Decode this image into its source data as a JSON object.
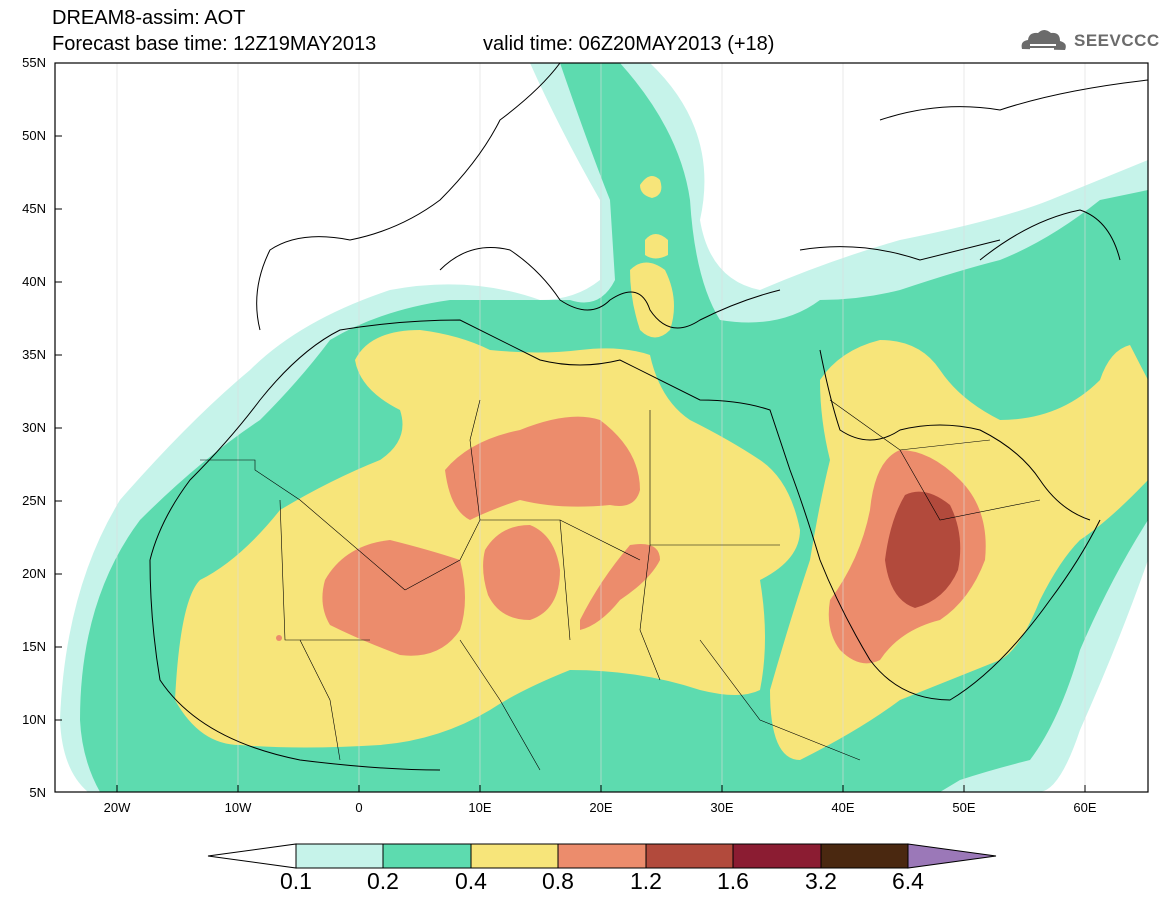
{
  "header": {
    "title": "DREAM8-assim: AOT",
    "base_time": "Forecast base time: 12Z19MAY2013",
    "valid_time": "valid time: 06Z20MAY2013 (+18)",
    "logo_text": "SEEVCCC"
  },
  "map": {
    "lat_labels": [
      "55N",
      "50N",
      "45N",
      "40N",
      "35N",
      "30N",
      "25N",
      "20N",
      "15N",
      "10N",
      "5N"
    ],
    "lon_labels": [
      "20W",
      "10W",
      "0",
      "10E",
      "20E",
      "30E",
      "40E",
      "50E",
      "60E"
    ],
    "variable": "Aerosol optical thickness",
    "colors": {
      "c01": "#c6f3ea",
      "c02": "#5ddbaf",
      "c04": "#f7e57a",
      "c08": "#ec8c6c",
      "c12": "#b24a3c",
      "c16": "#8b1c32",
      "c32": "#4a2810",
      "c64": "#9b78b8"
    }
  },
  "colorbar": {
    "labels": [
      "0.1",
      "0.2",
      "0.4",
      "0.8",
      "1.2",
      "1.6",
      "3.2",
      "6.4"
    ],
    "colors": [
      "#c6f3ea",
      "#5ddbaf",
      "#f7e57a",
      "#ec8c6c",
      "#b24a3c",
      "#8b1c32",
      "#4a2810"
    ],
    "under_color": "#ffffff",
    "over_color": "#9b78b8"
  }
}
